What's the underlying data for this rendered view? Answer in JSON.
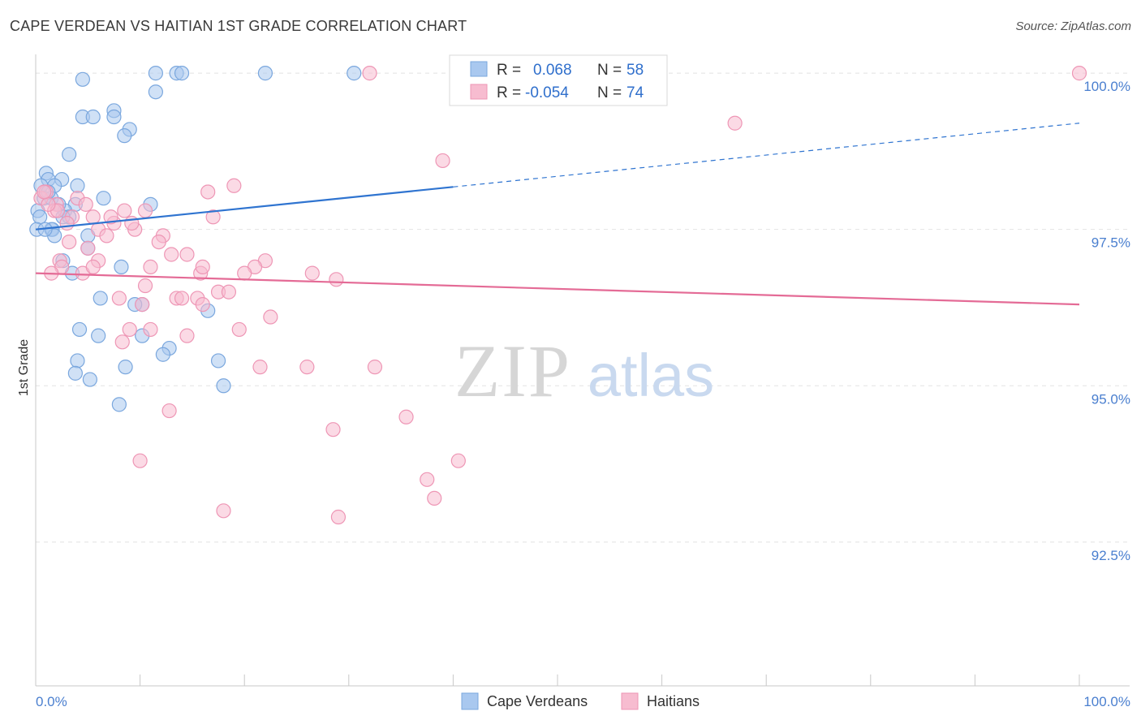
{
  "title": "CAPE VERDEAN VS HAITIAN 1ST GRADE CORRELATION CHART",
  "source": "Source: ZipAtlas.com",
  "watermark": {
    "zip": "ZIP",
    "atlas": "atlas"
  },
  "colors": {
    "blue_fill": "#a9c8ef",
    "blue_stroke": "#7aa7de",
    "blue_line": "#2f74d0",
    "pink_fill": "#f7bcd0",
    "pink_stroke": "#ee96b5",
    "pink_line": "#e46b96",
    "tick_label": "#4a7fcf",
    "grid": "#e2e2e2"
  },
  "legend": {
    "rows": [
      {
        "r_label": "R =",
        "r_value": "0.068",
        "n_label": "N =",
        "n_value": "58",
        "series": "blue"
      },
      {
        "r_label": "R =",
        "r_value": "-0.054",
        "n_label": "N =",
        "n_value": "74",
        "series": "pink"
      }
    ]
  },
  "chart_data": {
    "type": "scatter",
    "xlabel": "",
    "ylabel": "1st Grade",
    "xlim": [
      0,
      100
    ],
    "ylim": [
      90.2,
      100.3
    ],
    "x_tick_labels": [
      {
        "value": 0,
        "label": "0.0%"
      },
      {
        "value": 100,
        "label": "100.0%"
      }
    ],
    "y_tick_labels": [
      {
        "value": 100,
        "label": "100.0%"
      },
      {
        "value": 97.5,
        "label": "97.5%"
      },
      {
        "value": 95,
        "label": "95.0%"
      },
      {
        "value": 92.5,
        "label": "92.5%"
      }
    ],
    "bottom_legend": [
      "Cape Verdeans",
      "Haitians"
    ],
    "series": [
      {
        "name": "Cape Verdeans",
        "color": "blue",
        "trend": {
          "x0": 0,
          "y0": 97.5,
          "x_solid_end": 40,
          "x1": 100,
          "y1": 99.2
        },
        "points": [
          [
            4.5,
            99.9
          ],
          [
            11.5,
            100.0
          ],
          [
            13.5,
            100.0
          ],
          [
            14,
            100.0
          ],
          [
            22,
            100.0
          ],
          [
            30.5,
            100.0
          ],
          [
            11.5,
            99.7
          ],
          [
            7.5,
            99.4
          ],
          [
            4.5,
            99.3
          ],
          [
            5.5,
            99.3
          ],
          [
            7.5,
            99.3
          ],
          [
            9,
            99.1
          ],
          [
            8.5,
            99.0
          ],
          [
            3.2,
            98.7
          ],
          [
            1.0,
            98.4
          ],
          [
            1.2,
            98.3
          ],
          [
            2.5,
            98.3
          ],
          [
            0.5,
            98.2
          ],
          [
            4,
            98.2
          ],
          [
            1.8,
            98.2
          ],
          [
            0.8,
            98.0
          ],
          [
            1.5,
            98.0
          ],
          [
            6.5,
            98.0
          ],
          [
            3.8,
            97.9
          ],
          [
            11,
            97.9
          ],
          [
            0.2,
            97.8
          ],
          [
            2.8,
            97.8
          ],
          [
            3.2,
            97.7
          ],
          [
            0.4,
            97.7
          ],
          [
            2.6,
            97.7
          ],
          [
            1.5,
            97.5
          ],
          [
            1.6,
            97.5
          ],
          [
            1.8,
            97.4
          ],
          [
            0.1,
            97.5
          ],
          [
            5,
            97.4
          ],
          [
            5,
            97.2
          ],
          [
            2.6,
            97.0
          ],
          [
            8.2,
            96.9
          ],
          [
            3.5,
            96.8
          ],
          [
            6.2,
            96.4
          ],
          [
            10.2,
            96.3
          ],
          [
            9.5,
            96.3
          ],
          [
            16.5,
            96.2
          ],
          [
            4.2,
            95.9
          ],
          [
            10.2,
            95.8
          ],
          [
            6,
            95.8
          ],
          [
            12.8,
            95.6
          ],
          [
            12.2,
            95.5
          ],
          [
            17.5,
            95.4
          ],
          [
            4,
            95.4
          ],
          [
            8.6,
            95.3
          ],
          [
            3.8,
            95.2
          ],
          [
            5.2,
            95.1
          ],
          [
            18,
            95.0
          ],
          [
            8,
            94.7
          ],
          [
            1.2,
            98.1
          ],
          [
            0.9,
            97.5
          ],
          [
            2.2,
            97.9
          ]
        ]
      },
      {
        "name": "Haitians",
        "color": "pink",
        "trend": {
          "x0": 0,
          "y0": 96.8,
          "x1": 100,
          "y1": 96.3
        },
        "points": [
          [
            32,
            100.0
          ],
          [
            100,
            100.0
          ],
          [
            67,
            99.2
          ],
          [
            39,
            98.6
          ],
          [
            19,
            98.2
          ],
          [
            16.5,
            98.1
          ],
          [
            0.5,
            98.0
          ],
          [
            2,
            97.9
          ],
          [
            4,
            98.0
          ],
          [
            8.5,
            97.8
          ],
          [
            10.5,
            97.8
          ],
          [
            1.8,
            97.8
          ],
          [
            5.5,
            97.7
          ],
          [
            7.5,
            97.6
          ],
          [
            3.5,
            97.7
          ],
          [
            17,
            97.7
          ],
          [
            9.5,
            97.5
          ],
          [
            6,
            97.5
          ],
          [
            12.2,
            97.4
          ],
          [
            6.8,
            97.4
          ],
          [
            3.2,
            97.3
          ],
          [
            11.8,
            97.3
          ],
          [
            5,
            97.2
          ],
          [
            14.5,
            97.1
          ],
          [
            13,
            97.1
          ],
          [
            6,
            97.0
          ],
          [
            2.3,
            97.0
          ],
          [
            2.5,
            96.9
          ],
          [
            11,
            96.9
          ],
          [
            22,
            97.0
          ],
          [
            21,
            96.9
          ],
          [
            26.5,
            96.8
          ],
          [
            28.8,
            96.7
          ],
          [
            15.8,
            96.8
          ],
          [
            16,
            96.9
          ],
          [
            20,
            96.8
          ],
          [
            1.5,
            96.8
          ],
          [
            4.5,
            96.8
          ],
          [
            5.5,
            96.9
          ],
          [
            10.5,
            96.6
          ],
          [
            17.5,
            96.5
          ],
          [
            18.5,
            96.5
          ],
          [
            8,
            96.4
          ],
          [
            13.5,
            96.4
          ],
          [
            14,
            96.4
          ],
          [
            15.5,
            96.4
          ],
          [
            10.2,
            96.3
          ],
          [
            16,
            96.3
          ],
          [
            22.5,
            96.1
          ],
          [
            9,
            95.9
          ],
          [
            11,
            95.9
          ],
          [
            19.5,
            95.9
          ],
          [
            14.5,
            95.8
          ],
          [
            8.3,
            95.7
          ],
          [
            21.5,
            95.3
          ],
          [
            26,
            95.3
          ],
          [
            32.5,
            95.3
          ],
          [
            12.8,
            94.6
          ],
          [
            35.5,
            94.5
          ],
          [
            28.5,
            94.3
          ],
          [
            40.5,
            93.8
          ],
          [
            10,
            93.8
          ],
          [
            37.5,
            93.5
          ],
          [
            38.2,
            93.2
          ],
          [
            18,
            93.0
          ],
          [
            29,
            92.9
          ],
          [
            1,
            98.1
          ],
          [
            3,
            97.6
          ],
          [
            7.2,
            97.7
          ],
          [
            9.2,
            97.6
          ],
          [
            2.1,
            97.8
          ],
          [
            1.2,
            97.9
          ],
          [
            4.8,
            97.9
          ],
          [
            0.8,
            98.1
          ]
        ]
      }
    ]
  }
}
